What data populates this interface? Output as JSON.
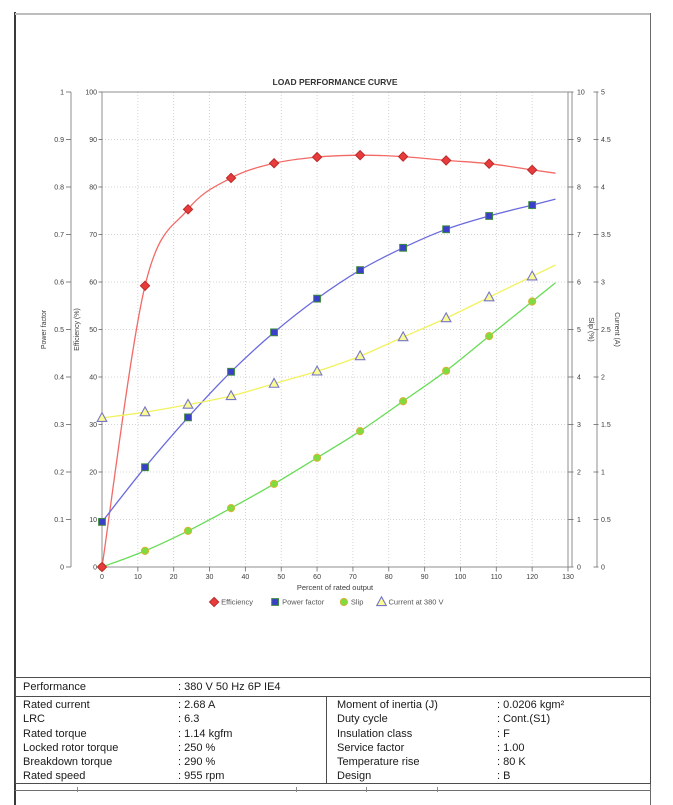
{
  "chart_data": {
    "type": "line",
    "title": "LOAD PERFORMANCE CURVE",
    "xlabel": "Percent of rated output",
    "xlim": [
      0,
      130
    ],
    "x_tick_step": 10,
    "grid": true,
    "legend_position": "bottom",
    "x": [
      0,
      12,
      24,
      36,
      48,
      60,
      72,
      84,
      96,
      108,
      120
    ],
    "axes": [
      {
        "id": "power_factor",
        "label": "Power factor",
        "side": "left",
        "range": [
          0,
          1
        ],
        "tick_step": 0.1
      },
      {
        "id": "efficiency",
        "label": "Efficiency (%)",
        "side": "left",
        "range": [
          0,
          100
        ],
        "tick_step": 10
      },
      {
        "id": "slip",
        "label": "Slip (%)",
        "side": "right",
        "range": [
          0,
          10
        ],
        "tick_step": 1
      },
      {
        "id": "current",
        "label": "Current (A)",
        "side": "right",
        "range": [
          0,
          5
        ],
        "tick_step": 0.5
      }
    ],
    "series": [
      {
        "name": "Efficiency",
        "axis": "efficiency",
        "marker": "diamond",
        "line_color": "#f26a66",
        "marker_fill": "#e83c3c",
        "marker_stroke": "#bb2a2a",
        "values": [
          0,
          59.2,
          75.3,
          81.9,
          85.0,
          86.3,
          86.7,
          86.4,
          85.6,
          84.9,
          83.6
        ]
      },
      {
        "name": "Power factor",
        "axis": "power_factor",
        "marker": "square",
        "line_color": "#6a6ade",
        "marker_fill": "#3a3ecb",
        "marker_stroke": "#3d8a3d",
        "values": [
          0.095,
          0.21,
          0.315,
          0.411,
          0.494,
          0.565,
          0.625,
          0.672,
          0.711,
          0.739,
          0.762
        ]
      },
      {
        "name": "Slip",
        "axis": "slip",
        "marker": "circle",
        "line_color": "#67dc55",
        "marker_fill": "#7ddc3e",
        "marker_stroke": "#d9b23a",
        "values": [
          0,
          0.34,
          0.76,
          1.24,
          1.75,
          2.3,
          2.86,
          3.49,
          4.13,
          4.86,
          5.59
        ]
      },
      {
        "name": "Current at 380 V",
        "axis": "current",
        "marker": "triangle",
        "line_color": "#f2f25e",
        "marker_fill": "#fbfb96",
        "marker_stroke": "#7676c8",
        "values": [
          1.57,
          1.63,
          1.71,
          1.8,
          1.93,
          2.06,
          2.22,
          2.42,
          2.62,
          2.84,
          3.06
        ]
      }
    ]
  },
  "table": {
    "header_row": {
      "label": "Performance",
      "value": ": 380 V 50 Hz 6P IE4"
    },
    "left_rows": [
      {
        "label": "Rated current",
        "value": ": 2.68 A"
      },
      {
        "label": "LRC",
        "value": ": 6.3"
      },
      {
        "label": "Rated torque",
        "value": ": 1.14 kgfm"
      },
      {
        "label": "Locked rotor torque",
        "value": ": 250 %"
      },
      {
        "label": "Breakdown torque",
        "value": ": 290 %"
      },
      {
        "label": "Rated speed",
        "value": ": 955 rpm"
      }
    ],
    "right_rows": [
      {
        "label": "Moment of inertia (J)",
        "value": ": 0.0206 kgm²"
      },
      {
        "label": "Duty cycle",
        "value": ": Cont.(S1)"
      },
      {
        "label": "Insulation class",
        "value": ": F"
      },
      {
        "label": "Service factor",
        "value": ": 1.00"
      },
      {
        "label": "Temperature rise",
        "value": ": 80 K"
      },
      {
        "label": "Design",
        "value": ": B"
      }
    ]
  },
  "colors": {
    "grid": "#c9c9c9",
    "plot_border": "#8f8f8f",
    "tick_text": "#3c3c3c",
    "title_text": "#333333",
    "legend_text": "#555555"
  }
}
